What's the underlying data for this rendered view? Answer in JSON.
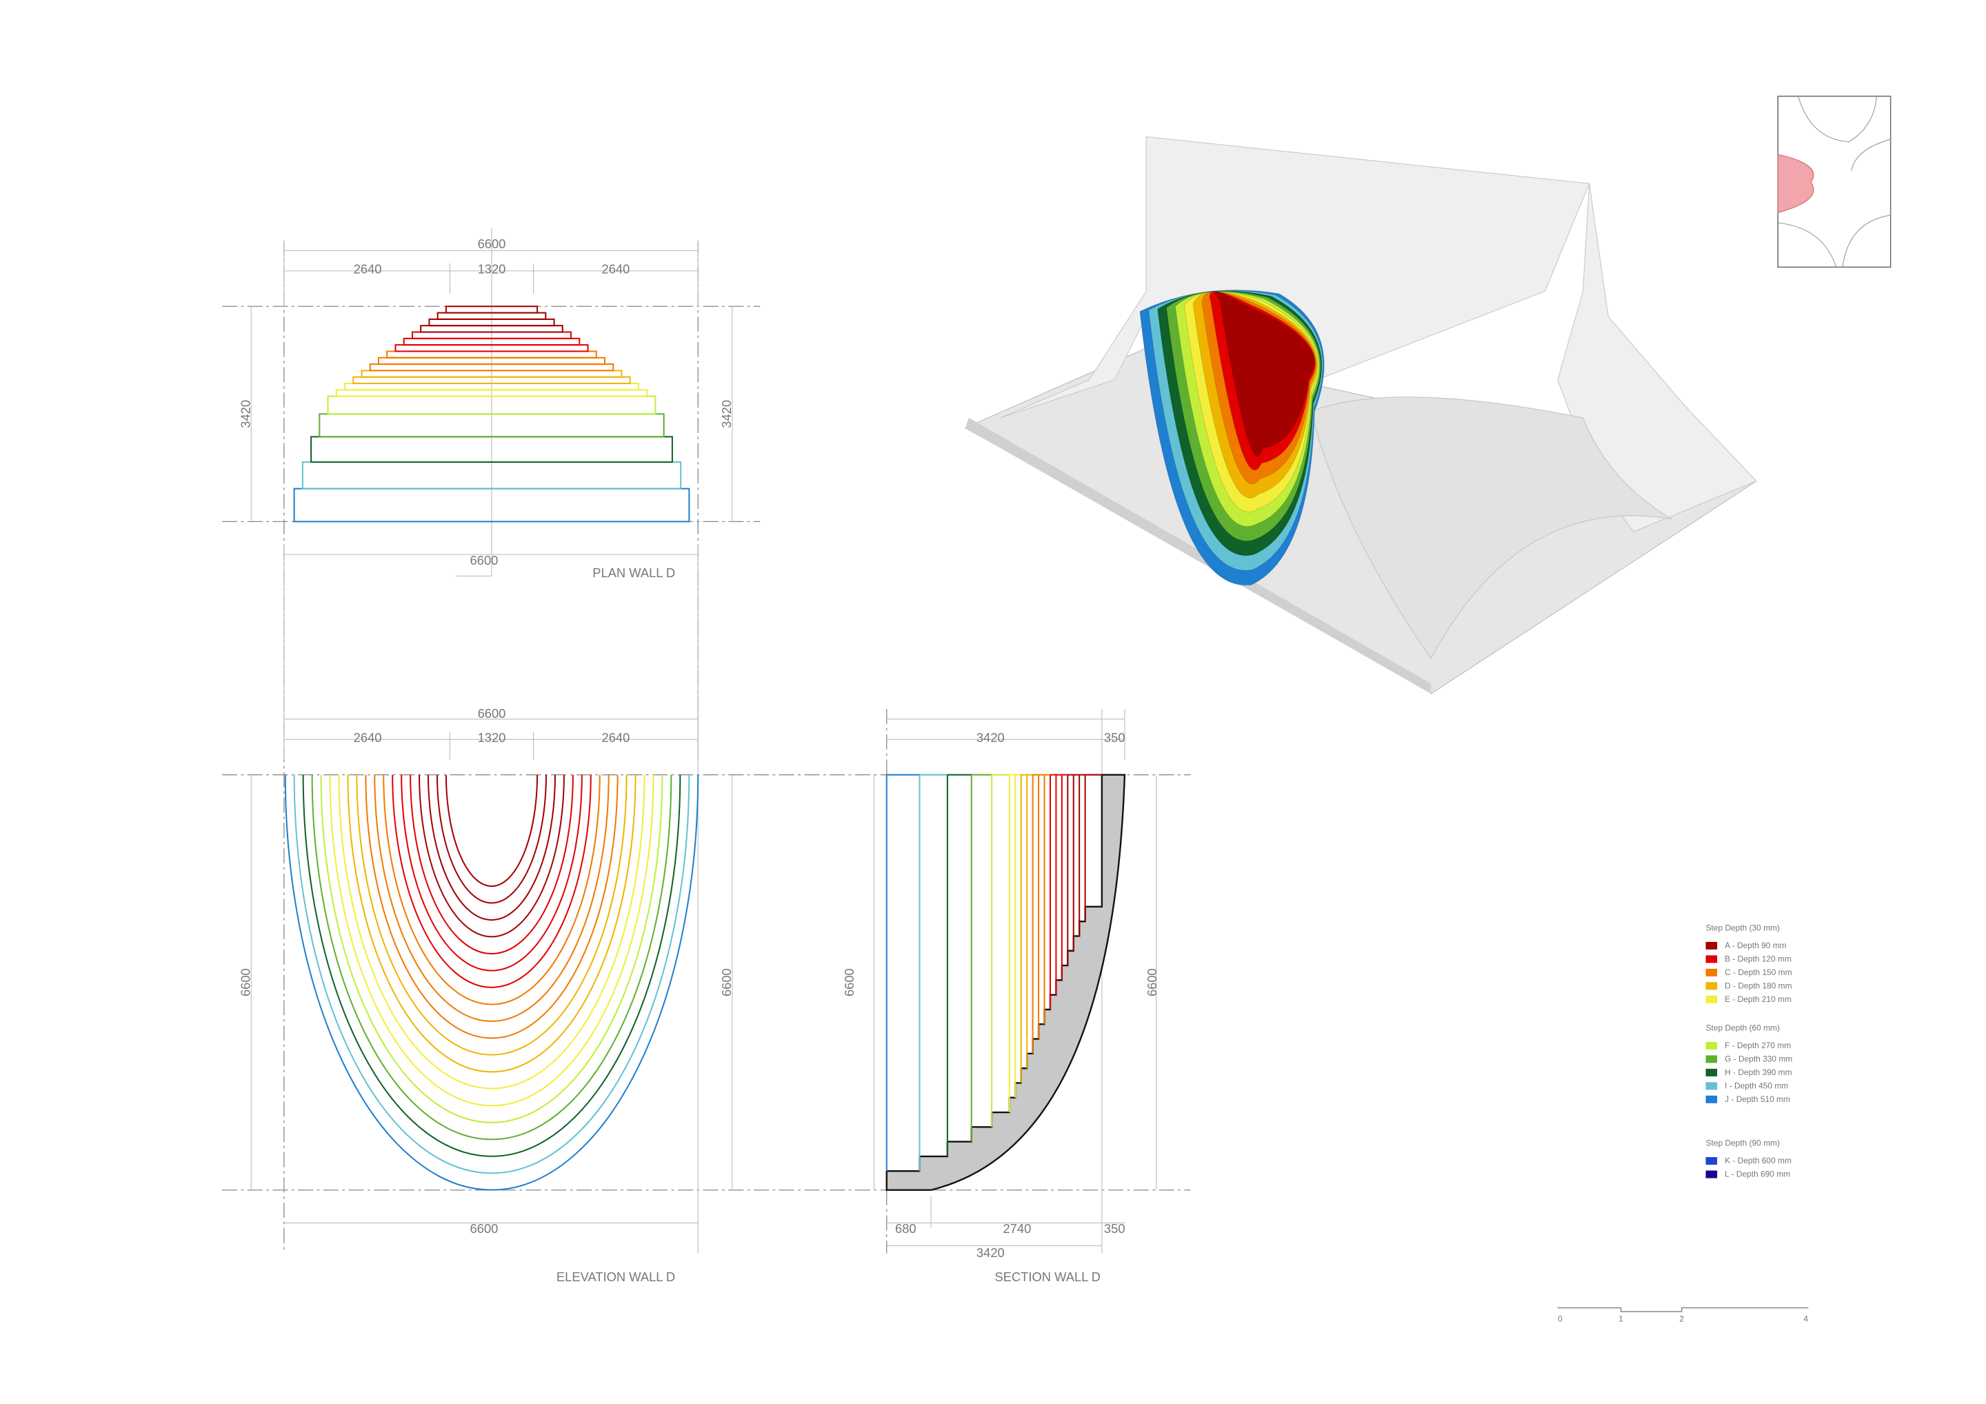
{
  "plan": {
    "title": "PLAN WALL D",
    "dims": {
      "overall": "6600",
      "left": "2640",
      "middle": "1320",
      "right": "2640",
      "height_left": "3420",
      "height_right": "3420",
      "bottom": "6600"
    }
  },
  "elevation": {
    "title": "ELEVATION WALL D",
    "dims": {
      "overall": "6600",
      "left": "2640",
      "middle": "1320",
      "right": "2640",
      "height_left": "6600",
      "height_right": "6600",
      "bottom": "6600"
    }
  },
  "section": {
    "title": "SECTION WALL D",
    "dims": {
      "top_main": "3420",
      "top_edge": "350",
      "height_left": "6600",
      "height_right": "6600",
      "bottom_first": "680",
      "bottom_mid": "2740",
      "bottom_edge": "350",
      "bottom_total": "3420"
    }
  },
  "legend": {
    "groups": [
      {
        "title": "Step Depth (30 mm)",
        "items": [
          {
            "label": "A - Depth 90 mm",
            "color": "#a30000"
          },
          {
            "label": "B - Depth 120 mm",
            "color": "#e40000"
          },
          {
            "label": "C - Depth 150 mm",
            "color": "#f07a00"
          },
          {
            "label": "D - Depth 180 mm",
            "color": "#f0b400"
          },
          {
            "label": "E - Depth 210 mm",
            "color": "#f2ee3a"
          }
        ]
      },
      {
        "title": "Step Depth (60 mm)",
        "items": [
          {
            "label": "F - Depth 270 mm",
            "color": "#c2ee3a"
          },
          {
            "label": "G - Depth 330 mm",
            "color": "#5fb030"
          },
          {
            "label": "H - Depth 390 mm",
            "color": "#10612a"
          },
          {
            "label": "I - Depth 450 mm",
            "color": "#62c2d4"
          },
          {
            "label": "J - Depth 510 mm",
            "color": "#1f7fd0"
          }
        ]
      },
      {
        "title": "Step Depth (90 mm)",
        "items": [
          {
            "label": "K - Depth 600 mm",
            "color": "#2044d4"
          },
          {
            "label": "L - Depth 690 mm",
            "color": "#20008f"
          }
        ]
      }
    ]
  },
  "scale_bar": {
    "labels": [
      "0",
      "1",
      "2",
      "4"
    ]
  }
}
